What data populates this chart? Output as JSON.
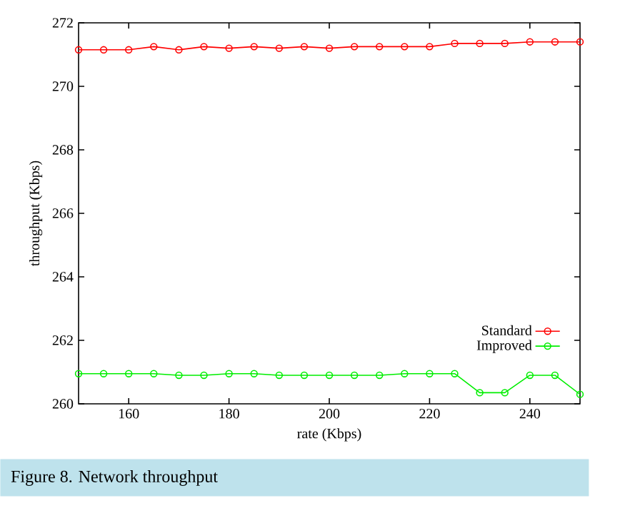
{
  "chart_data": {
    "type": "line",
    "xlabel": "rate (Kbps)",
    "ylabel": "throughput (Kbps)",
    "annotations": [
      "Figure 8. Network throughput"
    ],
    "x": [
      150,
      155,
      160,
      165,
      170,
      175,
      180,
      185,
      190,
      195,
      200,
      205,
      210,
      215,
      220,
      225,
      230,
      235,
      240,
      245,
      250
    ],
    "series": [
      {
        "name": "Standard",
        "color": "#ff0000",
        "values": [
          271.15,
          271.15,
          271.15,
          271.25,
          271.15,
          271.25,
          271.2,
          271.25,
          271.2,
          271.25,
          271.2,
          271.25,
          271.25,
          271.25,
          271.25,
          271.35,
          271.35,
          271.35,
          271.4,
          271.4,
          271.4
        ]
      },
      {
        "name": "Improved",
        "color": "#00ee00",
        "values": [
          260.95,
          260.95,
          260.95,
          260.95,
          260.9,
          260.9,
          260.95,
          260.95,
          260.9,
          260.9,
          260.9,
          260.9,
          260.9,
          260.95,
          260.95,
          260.95,
          260.35,
          260.35,
          260.9,
          260.9,
          260.3
        ]
      }
    ],
    "xlim": [
      150,
      250
    ],
    "ylim": [
      260,
      272
    ],
    "xticks": [
      160,
      180,
      200,
      220,
      240
    ],
    "yticks": [
      260,
      262,
      264,
      266,
      268,
      270,
      272
    ],
    "legend": "bottom right",
    "marker": "circle",
    "line_style": "solid",
    "grid": false
  }
}
